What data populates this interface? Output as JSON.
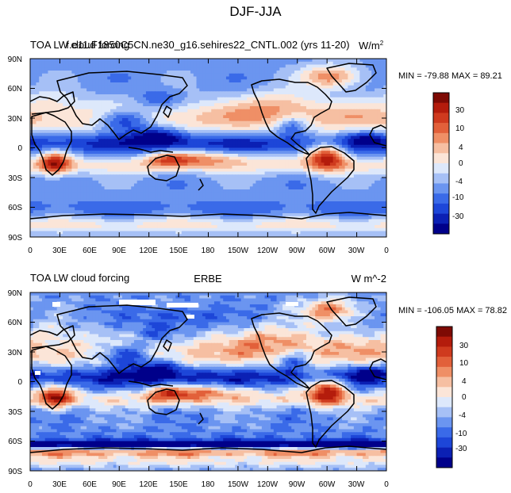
{
  "page": {
    "title": "DJF-JJA"
  },
  "chart_data": [
    {
      "type": "heatmap",
      "panel": "model",
      "left_title": "TOA LW cloud forcing",
      "center_title": "f.e11.F1850C5CN.ne30_g16.sehires22_CNTL.002 (yrs 11-20)",
      "units": "W/m",
      "units_superscript": "2",
      "stats": "MIN = -79.88 MAX =  89.21",
      "min": -79.88,
      "max": 89.21,
      "xlim": [
        0,
        360
      ],
      "ylim": [
        -90,
        90
      ],
      "x_ticks": [
        "0",
        "30E",
        "60E",
        "90E",
        "120E",
        "150E",
        "180",
        "150W",
        "120W",
        "90W",
        "60W",
        "30W",
        "0"
      ],
      "y_ticks": [
        "90N",
        "60N",
        "30N",
        "0",
        "30S",
        "60S",
        "90S"
      ],
      "colorbar_labels": [
        "30",
        "10",
        "4",
        "0",
        "-4",
        "-10",
        "-30"
      ]
    },
    {
      "type": "heatmap",
      "panel": "obs",
      "left_title": "TOA LW cloud forcing",
      "center_title": "ERBE",
      "units": "W m^-2",
      "stats": "MIN = -106.05 MAX =  78.82",
      "min": -106.05,
      "max": 78.82,
      "xlim": [
        0,
        360
      ],
      "ylim": [
        -90,
        90
      ],
      "x_ticks": [
        "0",
        "30E",
        "60E",
        "90E",
        "120E",
        "150E",
        "180",
        "150W",
        "120W",
        "90W",
        "60W",
        "30W",
        "0"
      ],
      "y_ticks": [
        "90N",
        "60N",
        "30N",
        "0",
        "30S",
        "60S",
        "90S"
      ],
      "colorbar_labels": [
        "30",
        "10",
        "4",
        "0",
        "-4",
        "-10",
        "-30"
      ]
    }
  ],
  "colorbar": {
    "levels": [
      -30,
      -10,
      -4,
      0,
      4,
      10,
      30
    ],
    "colors": [
      "#00008a",
      "#0b20b4",
      "#1d46d8",
      "#3a6ae8",
      "#6b95f0",
      "#a6c0f6",
      "#dde8fb",
      "#fbe5d8",
      "#f6bfa2",
      "#ef8f66",
      "#e2603a",
      "#cf3a1e",
      "#b41c0c",
      "#7e0a04"
    ]
  }
}
